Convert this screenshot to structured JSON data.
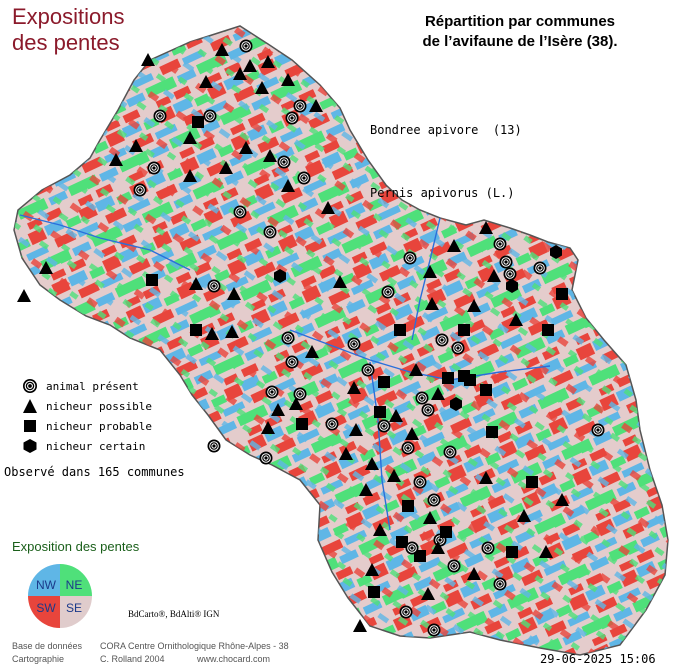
{
  "title_left": [
    "Expositions",
    "des pentes"
  ],
  "title_right": [
    "Répartition par communes",
    "de l’avifaune de l’Isère (38)."
  ],
  "species": {
    "common_name": "Bondree apivore  (13)",
    "latin_name": "Pernis apivorus (L.)"
  },
  "legend": [
    {
      "key": "present",
      "icon": "target-circle-icon",
      "label": "animal présent"
    },
    {
      "key": "possible",
      "icon": "triangle-icon",
      "label": "nicheur possible"
    },
    {
      "key": "probable",
      "icon": "square-icon",
      "label": "nicheur probable"
    },
    {
      "key": "certain",
      "icon": "hexagon-icon",
      "label": "nicheur certain"
    }
  ],
  "observed_text": "Observé dans 165 communes",
  "exposition": {
    "title": "Exposition des pentes",
    "quadrants": [
      {
        "label": "NW",
        "color": "#5fb6e6"
      },
      {
        "label": "NE",
        "color": "#4fe07a"
      },
      {
        "label": "SW",
        "color": "#e8453c"
      },
      {
        "label": "SE",
        "color": "#e0cccc"
      }
    ]
  },
  "copyright": "BdCarto®, BdAlti® IGN",
  "credits": {
    "labels": [
      "Base de données",
      "Cartographie"
    ],
    "values": [
      "CORA Centre Ornithologique Rhône-Alpes - 38",
      "C. Rolland 2004"
    ],
    "url": "www.chocard.com"
  },
  "date": "29-06-2025 15:06",
  "colors": {
    "title": "#8b1a2b",
    "expo_title": "#1a5f1a",
    "boundary": "#555555",
    "marker": "#000000"
  }
}
